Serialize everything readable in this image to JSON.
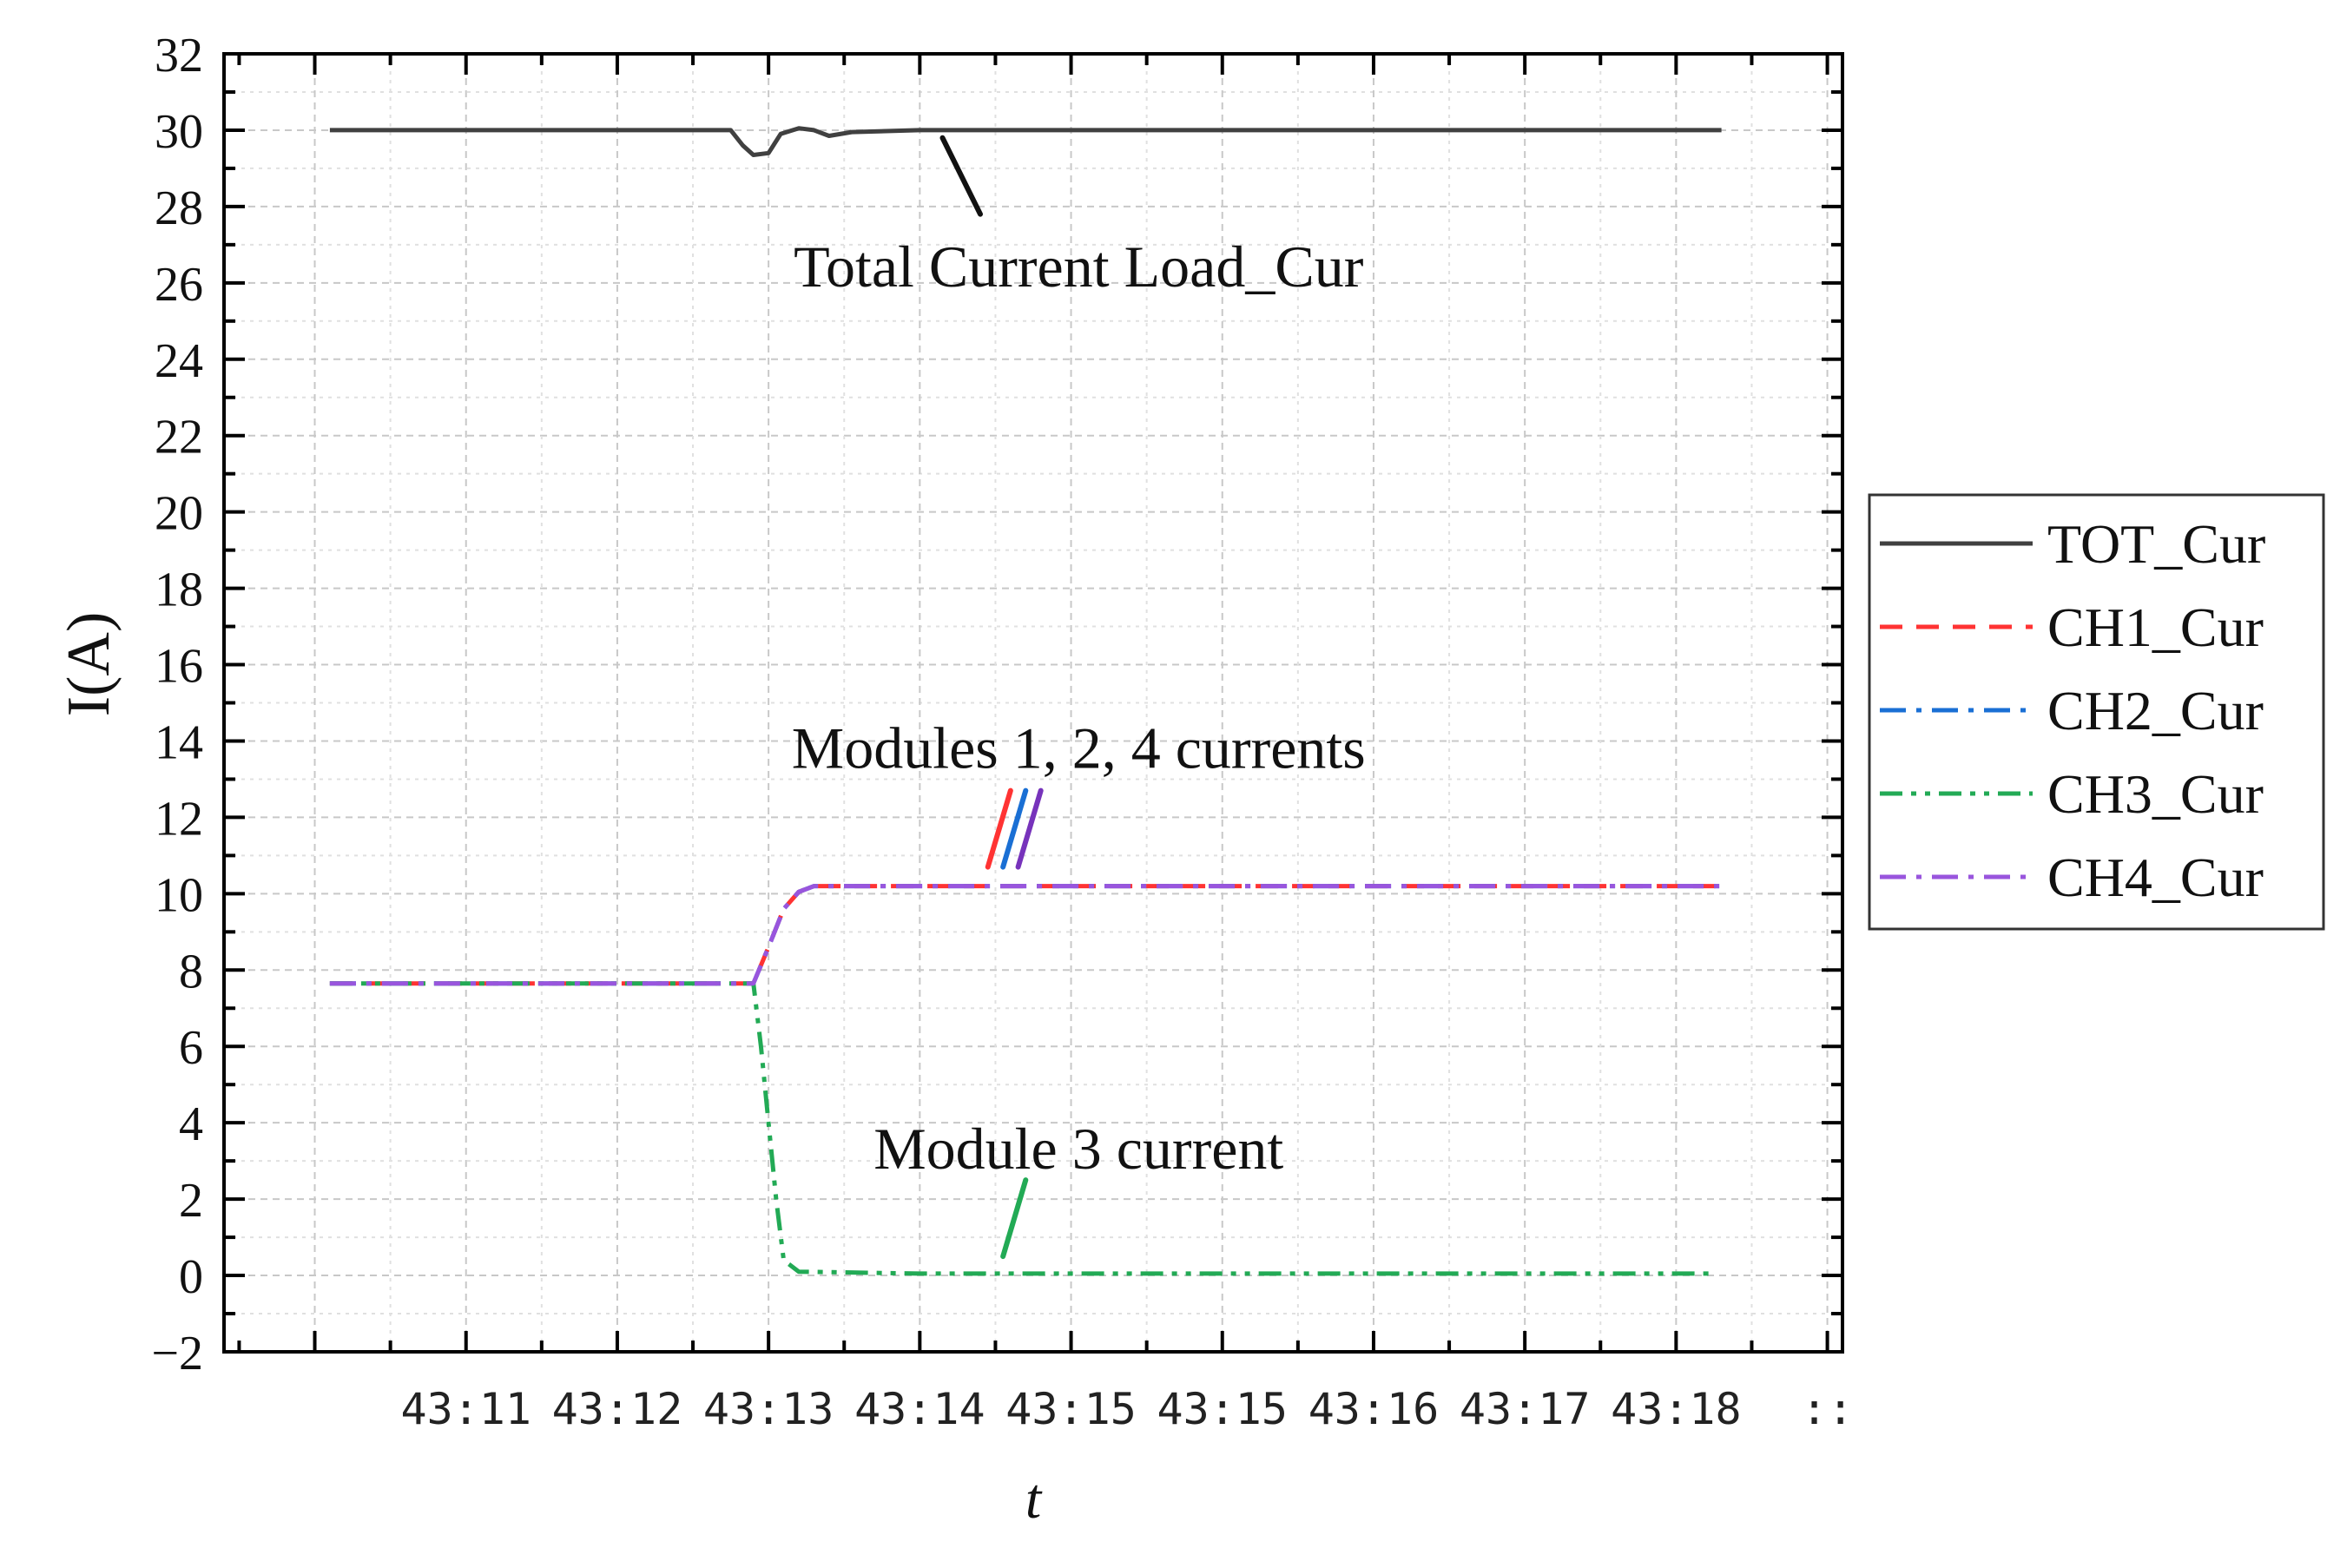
{
  "chart_data": {
    "type": "line",
    "xlabel": "t",
    "ylabel": "I(A)",
    "ylim": [
      -2,
      32
    ],
    "yticks": [
      -2,
      0,
      2,
      4,
      6,
      8,
      10,
      12,
      14,
      16,
      18,
      20,
      22,
      24,
      26,
      28,
      30,
      32
    ],
    "xticks": [
      {
        "label": "",
        "x": 0
      },
      {
        "label": "43:11",
        "x": 1
      },
      {
        "label": "43:12",
        "x": 2
      },
      {
        "label": "43:13",
        "x": 3
      },
      {
        "label": "43:14",
        "x": 4
      },
      {
        "label": "43:15",
        "x": 5
      },
      {
        "label": "43:15",
        "x": 6
      },
      {
        "label": "43:16",
        "x": 7
      },
      {
        "label": "43:17",
        "x": 8
      },
      {
        "label": "43:18",
        "x": 9
      },
      {
        "label": "::",
        "x": 10
      }
    ],
    "xlim": [
      -0.6,
      10.1
    ],
    "grid": true,
    "legend_position": "right",
    "series": [
      {
        "name": "TOT_Cur",
        "color": "#404040",
        "dash": "solid",
        "points": [
          [
            0.1,
            30.0
          ],
          [
            2.5,
            30.0
          ],
          [
            2.75,
            30.0
          ],
          [
            2.83,
            29.6
          ],
          [
            2.9,
            29.35
          ],
          [
            3.0,
            29.4
          ],
          [
            3.08,
            29.9
          ],
          [
            3.2,
            30.05
          ],
          [
            3.3,
            30.0
          ],
          [
            3.4,
            29.85
          ],
          [
            3.55,
            29.95
          ],
          [
            4.0,
            30.0
          ],
          [
            9.3,
            30.0
          ]
        ]
      },
      {
        "name": "CH1_Cur",
        "color": "#ff3333",
        "dash": "dashed",
        "points": [
          [
            0.1,
            7.65
          ],
          [
            2.9,
            7.65
          ],
          [
            3.0,
            8.6
          ],
          [
            3.1,
            9.6
          ],
          [
            3.2,
            10.05
          ],
          [
            3.3,
            10.2
          ],
          [
            4.0,
            10.2
          ],
          [
            9.3,
            10.2
          ]
        ]
      },
      {
        "name": "CH2_Cur",
        "color": "#1a6fd4",
        "dash": "dashdot",
        "points": [
          [
            0.1,
            7.65
          ],
          [
            2.9,
            7.65
          ],
          [
            3.0,
            8.6
          ],
          [
            3.1,
            9.6
          ],
          [
            3.2,
            10.05
          ],
          [
            3.3,
            10.2
          ],
          [
            4.0,
            10.2
          ],
          [
            9.3,
            10.2
          ]
        ]
      },
      {
        "name": "CH3_Cur",
        "color": "#22aa55",
        "dash": "dashdotdot",
        "points": [
          [
            0.1,
            7.65
          ],
          [
            2.9,
            7.65
          ],
          [
            2.95,
            6.0
          ],
          [
            3.0,
            4.0
          ],
          [
            3.05,
            2.0
          ],
          [
            3.1,
            0.4
          ],
          [
            3.2,
            0.1
          ],
          [
            4.0,
            0.05
          ],
          [
            9.25,
            0.05
          ]
        ]
      },
      {
        "name": "CH4_Cur",
        "color": "#9955dd",
        "dash": "dashdot",
        "points": [
          [
            0.1,
            7.65
          ],
          [
            2.9,
            7.65
          ],
          [
            3.0,
            8.6
          ],
          [
            3.1,
            9.6
          ],
          [
            3.2,
            10.05
          ],
          [
            3.3,
            10.2
          ],
          [
            4.0,
            10.2
          ],
          [
            9.3,
            10.2
          ]
        ]
      }
    ],
    "annotations": [
      {
        "text": "Total Current Load_Cur",
        "x": 5.05,
        "y": 26.4
      },
      {
        "text": "Modules 1, 2, 4 currents",
        "x": 5.05,
        "y": 13.8
      },
      {
        "text": "Module 3 current",
        "x": 5.05,
        "y": 3.3
      }
    ],
    "pointer_lines": [
      {
        "color": "#111111",
        "from": [
          4.15,
          29.8
        ],
        "to": [
          4.4,
          27.8
        ]
      },
      {
        "color": "#ff3333",
        "from": [
          4.45,
          10.7
        ],
        "to": [
          4.6,
          12.7
        ]
      },
      {
        "color": "#1a6fd4",
        "from": [
          4.55,
          10.7
        ],
        "to": [
          4.7,
          12.7
        ]
      },
      {
        "color": "#7733bb",
        "from": [
          4.65,
          10.7
        ],
        "to": [
          4.8,
          12.7
        ]
      },
      {
        "color": "#22aa55",
        "from": [
          4.55,
          0.5
        ],
        "to": [
          4.7,
          2.5
        ]
      }
    ]
  }
}
